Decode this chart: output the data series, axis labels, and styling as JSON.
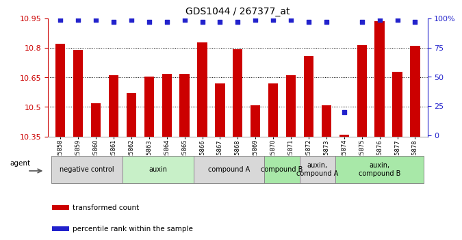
{
  "title": "GDS1044 / 267377_at",
  "samples": [
    "GSM25858",
    "GSM25859",
    "GSM25860",
    "GSM25861",
    "GSM25862",
    "GSM25863",
    "GSM25864",
    "GSM25865",
    "GSM25866",
    "GSM25867",
    "GSM25868",
    "GSM25869",
    "GSM25870",
    "GSM25871",
    "GSM25872",
    "GSM25873",
    "GSM25874",
    "GSM25875",
    "GSM25876",
    "GSM25877",
    "GSM25878"
  ],
  "bar_values": [
    10.82,
    10.79,
    10.52,
    10.66,
    10.57,
    10.655,
    10.67,
    10.67,
    10.83,
    10.62,
    10.795,
    10.51,
    10.62,
    10.66,
    10.76,
    10.51,
    10.36,
    10.815,
    10.935,
    10.68,
    10.81
  ],
  "percentile_values": [
    99,
    99,
    99,
    97,
    99,
    97,
    97,
    99,
    97,
    97,
    97,
    99,
    99,
    99,
    97,
    97,
    20,
    97,
    99,
    99,
    97
  ],
  "bar_color": "#cc0000",
  "dot_color": "#2222cc",
  "ylim_left": [
    10.35,
    10.95
  ],
  "ylim_right": [
    -1,
    100
  ],
  "yticks_left": [
    10.35,
    10.5,
    10.65,
    10.8,
    10.95
  ],
  "yticks_left_labels": [
    "10.35",
    "10.5",
    "10.65",
    "10.8",
    "10.95"
  ],
  "yticks_right": [
    0,
    25,
    50,
    75,
    100
  ],
  "ylabel_right_labels": [
    "0",
    "25",
    "50",
    "75",
    "100%"
  ],
  "group_boundaries": [
    {
      "start": 0,
      "end": 3,
      "label": "negative control",
      "color": "#d8d8d8"
    },
    {
      "start": 4,
      "end": 7,
      "label": "auxin",
      "color": "#c8f0c8"
    },
    {
      "start": 8,
      "end": 11,
      "label": "compound A",
      "color": "#d8d8d8"
    },
    {
      "start": 12,
      "end": 13,
      "label": "compound B",
      "color": "#a8e8a8"
    },
    {
      "start": 14,
      "end": 15,
      "label": "auxin,\ncompound A",
      "color": "#d8d8d8"
    },
    {
      "start": 16,
      "end": 20,
      "label": "auxin,\ncompound B",
      "color": "#a8e8a8"
    }
  ],
  "legend_items": [
    {
      "label": "transformed count",
      "color": "#cc0000",
      "marker": "s"
    },
    {
      "label": "percentile rank within the sample",
      "color": "#2222cc",
      "marker": "s"
    }
  ],
  "tick_color_left": "#cc0000",
  "tick_color_right": "#2222cc",
  "ymin": 10.35
}
